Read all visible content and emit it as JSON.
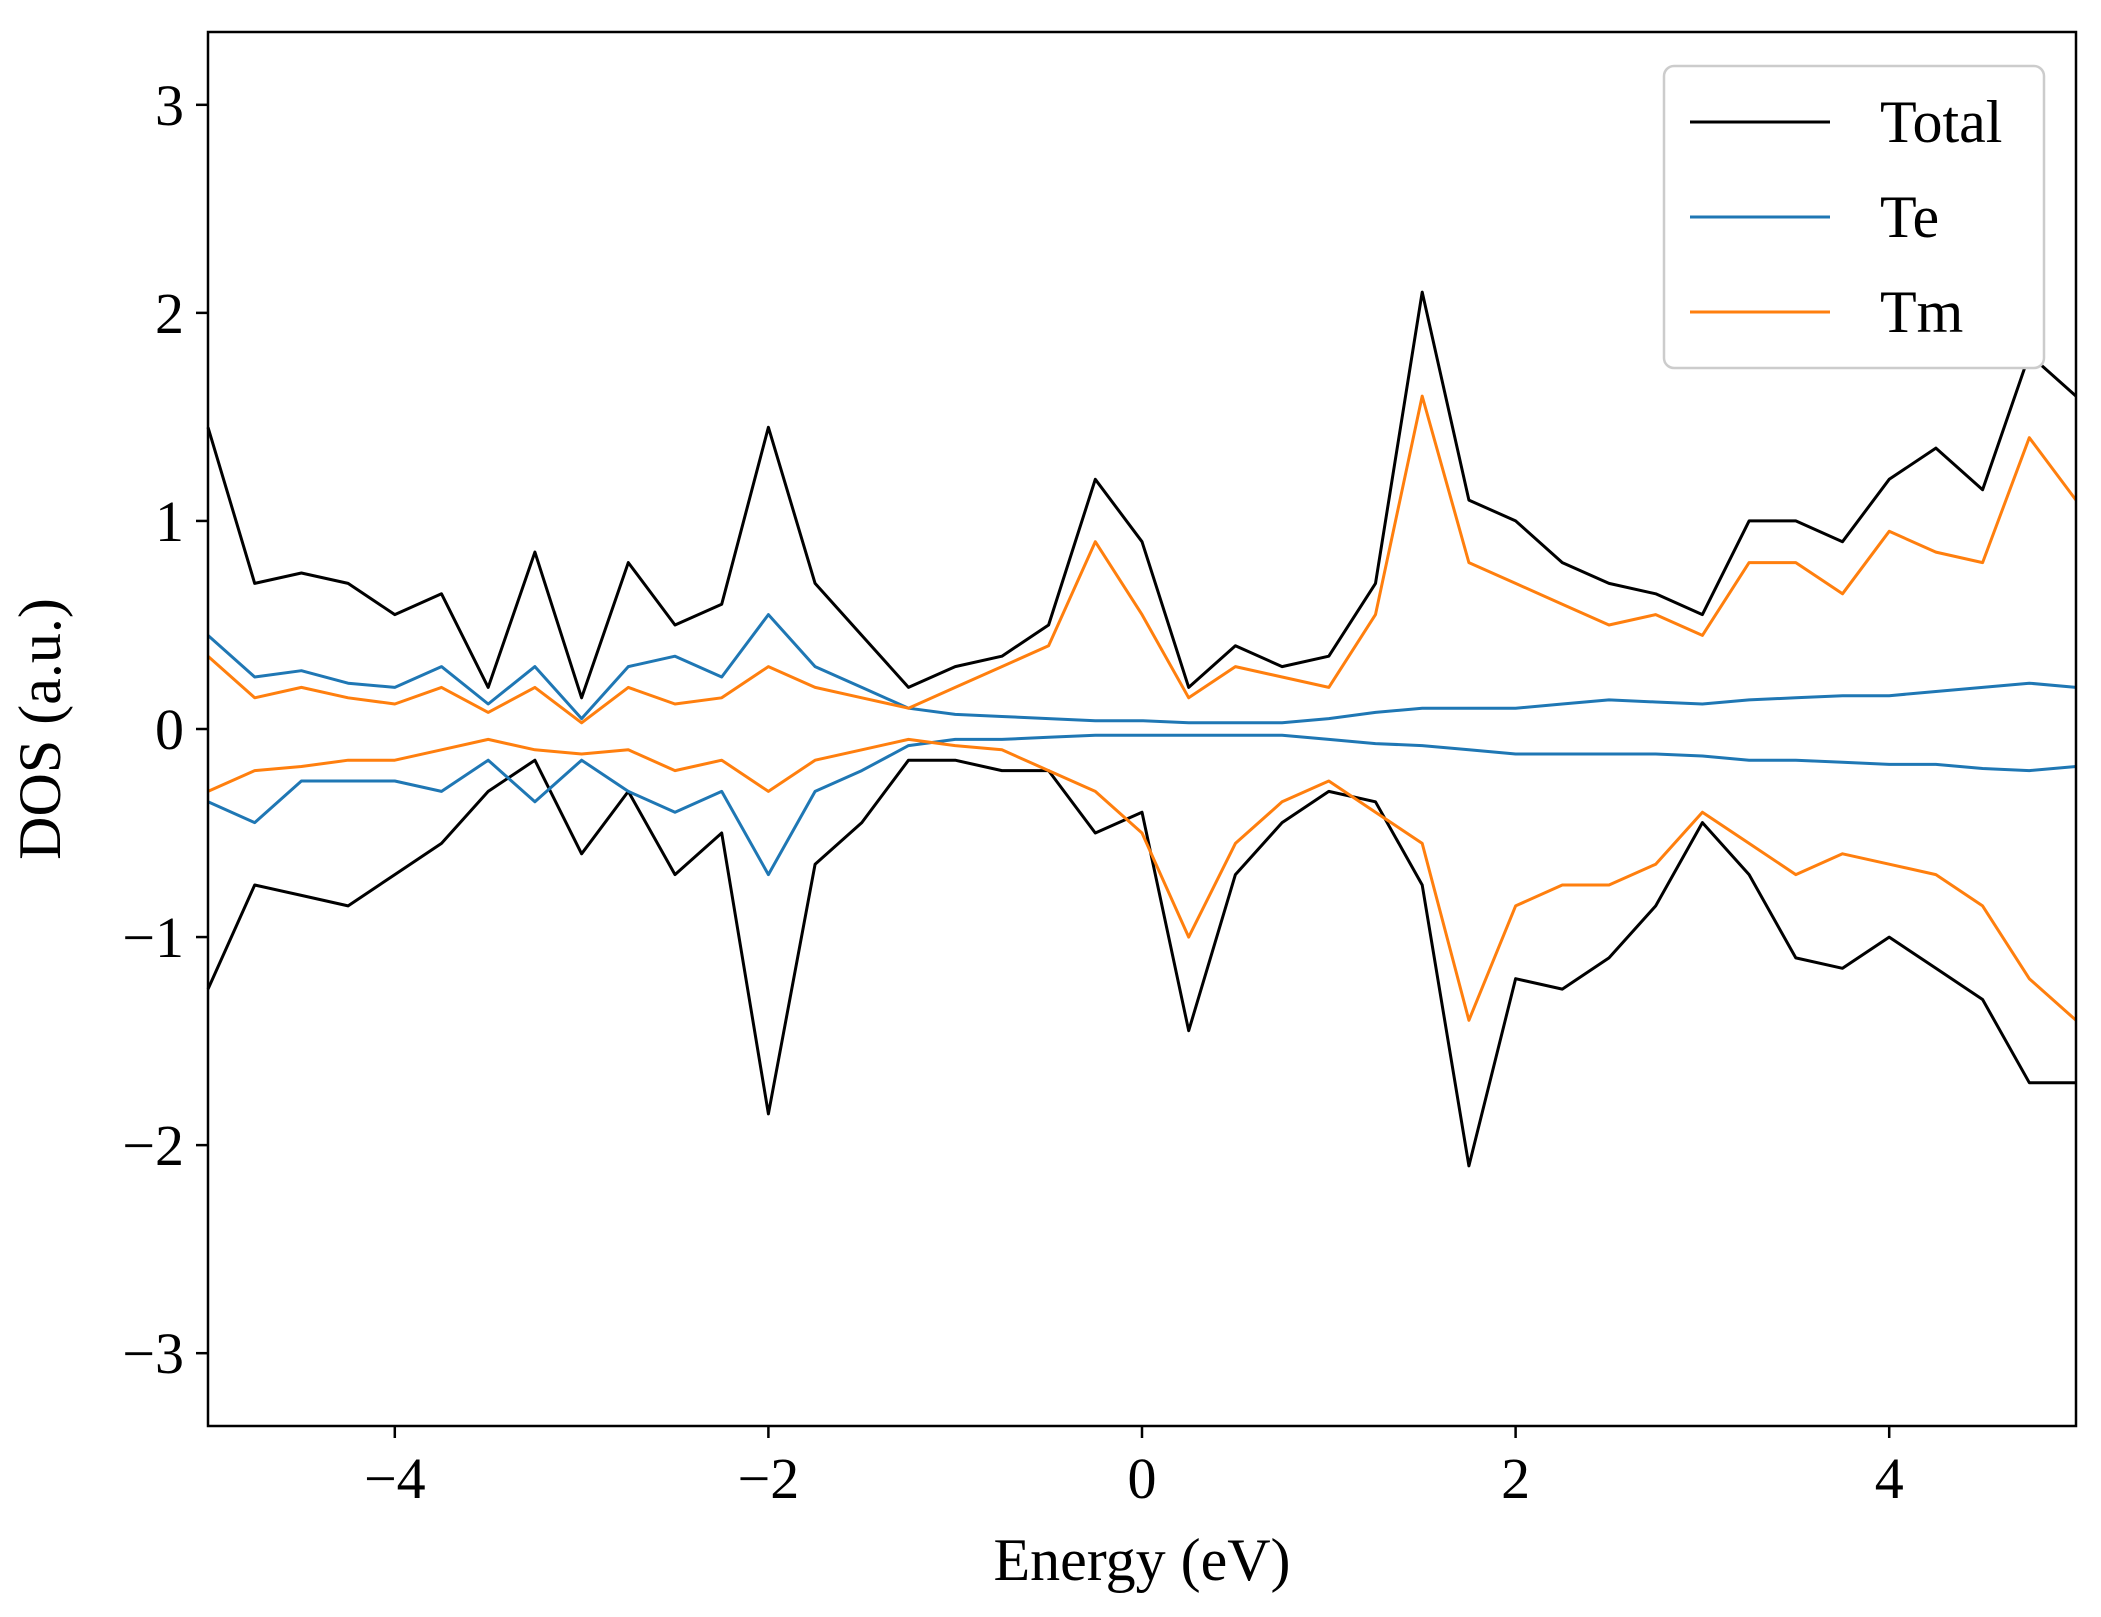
{
  "chart_data": {
    "type": "line",
    "title": "",
    "xlabel": "Energy (eV)",
    "ylabel": "DOS (a.u.)",
    "xlim": [
      -5,
      5
    ],
    "ylim": [
      -3.35,
      3.35
    ],
    "xticks": [
      -4,
      -2,
      0,
      2,
      4
    ],
    "xtick_labels": [
      "−4",
      "−2",
      "0",
      "2",
      "4"
    ],
    "yticks": [
      3,
      2,
      1,
      0,
      -1,
      -2,
      -3
    ],
    "ytick_labels": [
      "3",
      "2",
      "1",
      "0",
      "−1",
      "−2",
      "−3"
    ],
    "grid": false,
    "legend_position": "top-right",
    "x": [
      -5.0,
      -4.75,
      -4.5,
      -4.25,
      -4.0,
      -3.75,
      -3.5,
      -3.25,
      -3.0,
      -2.75,
      -2.5,
      -2.25,
      -2.0,
      -1.75,
      -1.5,
      -1.25,
      -1.0,
      -0.75,
      -0.5,
      -0.25,
      0.0,
      0.25,
      0.5,
      0.75,
      1.0,
      1.25,
      1.5,
      1.75,
      2.0,
      2.25,
      2.5,
      2.75,
      3.0,
      3.25,
      3.5,
      3.75,
      4.0,
      4.25,
      4.5,
      4.75,
      5.0
    ],
    "series": [
      {
        "name": "Total",
        "color": "#000000",
        "up": [
          1.45,
          0.7,
          0.75,
          0.7,
          0.55,
          0.65,
          0.2,
          0.85,
          0.15,
          0.8,
          0.5,
          0.6,
          1.45,
          0.7,
          0.45,
          0.2,
          0.3,
          0.35,
          0.5,
          1.2,
          0.9,
          0.2,
          0.4,
          0.3,
          0.35,
          0.7,
          2.1,
          1.1,
          1.0,
          0.8,
          0.7,
          0.65,
          0.55,
          1.0,
          1.0,
          0.9,
          1.2,
          1.35,
          1.15,
          1.8,
          1.6
        ],
        "down": [
          -1.25,
          -0.75,
          -0.8,
          -0.85,
          -0.7,
          -0.55,
          -0.3,
          -0.15,
          -0.6,
          -0.3,
          -0.7,
          -0.5,
          -1.85,
          -0.65,
          -0.45,
          -0.15,
          -0.15,
          -0.2,
          -0.2,
          -0.5,
          -0.4,
          -1.45,
          -0.7,
          -0.45,
          -0.3,
          -0.35,
          -0.75,
          -2.1,
          -1.2,
          -1.25,
          -1.1,
          -0.85,
          -0.45,
          -0.7,
          -1.1,
          -1.15,
          -1.0,
          -1.15,
          -1.3,
          -1.7,
          -1.7
        ]
      },
      {
        "name": "Te",
        "color": "#1f77b4",
        "up": [
          0.45,
          0.25,
          0.28,
          0.22,
          0.2,
          0.3,
          0.12,
          0.3,
          0.05,
          0.3,
          0.35,
          0.25,
          0.55,
          0.3,
          0.2,
          0.1,
          0.07,
          0.06,
          0.05,
          0.04,
          0.04,
          0.03,
          0.03,
          0.03,
          0.05,
          0.08,
          0.1,
          0.1,
          0.1,
          0.12,
          0.14,
          0.13,
          0.12,
          0.14,
          0.15,
          0.16,
          0.16,
          0.18,
          0.2,
          0.22,
          0.2
        ],
        "down": [
          -0.35,
          -0.45,
          -0.25,
          -0.25,
          -0.25,
          -0.3,
          -0.15,
          -0.35,
          -0.15,
          -0.3,
          -0.4,
          -0.3,
          -0.7,
          -0.3,
          -0.2,
          -0.08,
          -0.05,
          -0.05,
          -0.04,
          -0.03,
          -0.03,
          -0.03,
          -0.03,
          -0.03,
          -0.05,
          -0.07,
          -0.08,
          -0.1,
          -0.12,
          -0.12,
          -0.12,
          -0.12,
          -0.13,
          -0.15,
          -0.15,
          -0.16,
          -0.17,
          -0.17,
          -0.19,
          -0.2,
          -0.18
        ]
      },
      {
        "name": "Tm",
        "color": "#ff7f0e",
        "up": [
          0.35,
          0.15,
          0.2,
          0.15,
          0.12,
          0.2,
          0.08,
          0.2,
          0.03,
          0.2,
          0.12,
          0.15,
          0.3,
          0.2,
          0.15,
          0.1,
          0.2,
          0.3,
          0.4,
          0.9,
          0.55,
          0.15,
          0.3,
          0.25,
          0.2,
          0.55,
          1.6,
          0.8,
          0.7,
          0.6,
          0.5,
          0.55,
          0.45,
          0.8,
          0.8,
          0.65,
          0.95,
          0.85,
          0.8,
          1.4,
          1.1
        ],
        "down": [
          -0.3,
          -0.2,
          -0.18,
          -0.15,
          -0.15,
          -0.1,
          -0.05,
          -0.1,
          -0.12,
          -0.1,
          -0.2,
          -0.15,
          -0.3,
          -0.15,
          -0.1,
          -0.05,
          -0.08,
          -0.1,
          -0.2,
          -0.3,
          -0.5,
          -1.0,
          -0.55,
          -0.35,
          -0.25,
          -0.4,
          -0.55,
          -1.4,
          -0.85,
          -0.75,
          -0.75,
          -0.65,
          -0.4,
          -0.55,
          -0.7,
          -0.6,
          -0.65,
          -0.7,
          -0.85,
          -1.2,
          -1.4
        ]
      }
    ]
  }
}
